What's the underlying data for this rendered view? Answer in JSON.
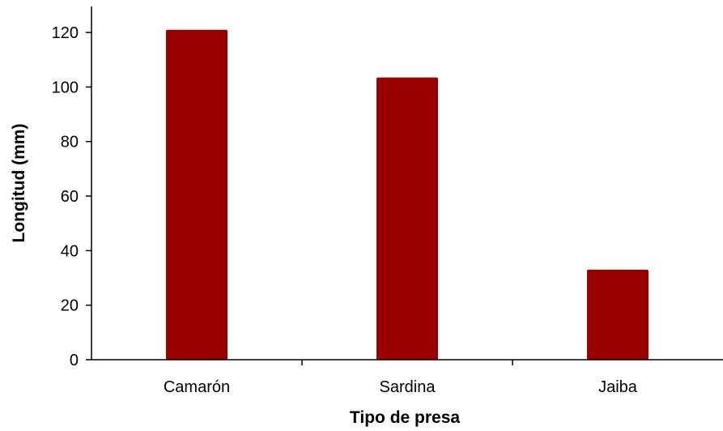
{
  "chart_data": {
    "type": "bar",
    "categories": [
      "Camarón",
      "Sardina",
      "Jaiba"
    ],
    "values": [
      121,
      103.5,
      33
    ],
    "title": "",
    "xlabel": "Tipo de presa",
    "ylabel": "Longitud (mm)",
    "ylim": [
      0,
      130
    ],
    "yticks": [
      0,
      20,
      40,
      60,
      80,
      100,
      120
    ],
    "grid": false,
    "legend": "none",
    "bar_color": "#990000",
    "axis_color": "#000000"
  }
}
